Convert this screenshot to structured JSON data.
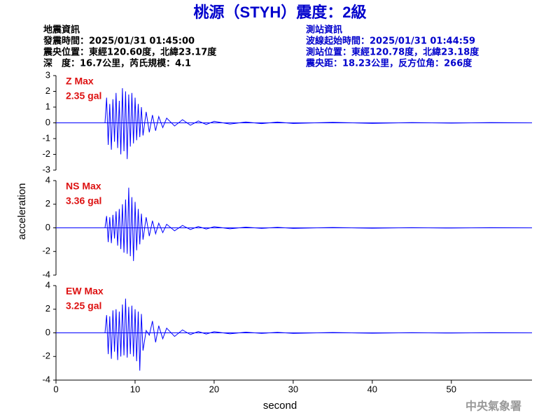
{
  "header": {
    "title": "桃源（STYH）震度：2級",
    "left": [
      "地震資訊",
      "發震時間：2025/01/31 01:45:00",
      "震央位置：東經120.60度，北緯23.17度",
      "深　度：16.7公里，芮氏規模：4.1"
    ],
    "right": [
      "測站資訊",
      "波線起始時間：2025/01/31 01:44:59",
      "測站位置：東經120.78度，北緯23.18度",
      "震央距：18.23公里，反方位角：266度"
    ]
  },
  "footer": {
    "credit": "中央氣象署"
  },
  "chart_data": [
    {
      "type": "line",
      "annotation": [
        "Z Max",
        "2.35 gal"
      ],
      "color": "#0000ff",
      "x": [
        6.2,
        6.4,
        6.6,
        6.8,
        7.0,
        7.2,
        7.4,
        7.6,
        7.8,
        8.0,
        8.2,
        8.4,
        8.6,
        8.8,
        9.0,
        9.2,
        9.4,
        9.6,
        9.8,
        10.0,
        10.2,
        10.4,
        10.6,
        10.8,
        11.0,
        11.4,
        11.8,
        12.2,
        12.6,
        13.0,
        13.5,
        14,
        15,
        16,
        17,
        18,
        19,
        20,
        22,
        24,
        26,
        28,
        30,
        35,
        40,
        45,
        50,
        55,
        60
      ],
      "values": [
        0,
        1.6,
        -1.4,
        1.2,
        -1.7,
        1.5,
        -1.2,
        1.9,
        -1.6,
        1.4,
        -2.0,
        2.2,
        -1.8,
        2.0,
        -2.3,
        1.8,
        -1.5,
        1.9,
        -1.3,
        1.6,
        -1.1,
        1.2,
        -0.9,
        1.0,
        -0.8,
        0.7,
        -0.6,
        0.5,
        -0.5,
        0.4,
        -0.3,
        0.3,
        -0.2,
        0.2,
        -0.15,
        0.12,
        -0.1,
        0.1,
        -0.08,
        0.06,
        -0.05,
        0.05,
        -0.04,
        0.03,
        -0.03,
        0.02,
        -0.02,
        0.02,
        0
      ],
      "xlim": [
        0,
        60.2
      ],
      "ylim": [
        -3,
        3
      ],
      "yticks": [
        3,
        2,
        1,
        0,
        -1,
        -2,
        -3
      ]
    },
    {
      "type": "line",
      "annotation": [
        "NS Max",
        "3.36 gal"
      ],
      "color": "#0000ff",
      "ylabel": "acceleration",
      "x": [
        6.2,
        6.4,
        6.6,
        6.8,
        7.0,
        7.2,
        7.4,
        7.6,
        7.8,
        8.0,
        8.2,
        8.4,
        8.6,
        8.8,
        9.0,
        9.2,
        9.4,
        9.6,
        9.8,
        10.0,
        10.2,
        10.4,
        10.6,
        10.8,
        11.0,
        11.4,
        11.8,
        12.2,
        12.6,
        13.0,
        13.5,
        14,
        15,
        16,
        17,
        18,
        19,
        20,
        22,
        24,
        26,
        28,
        30,
        35,
        40,
        45,
        50,
        55,
        60
      ],
      "values": [
        0,
        1.0,
        -1.2,
        0.9,
        -1.3,
        1.1,
        -0.9,
        1.4,
        -1.5,
        1.6,
        -1.8,
        2.0,
        -2.1,
        2.4,
        -2.2,
        3.4,
        -2.4,
        2.6,
        -2.8,
        2.2,
        -1.9,
        1.6,
        -1.4,
        1.2,
        -1.0,
        0.9,
        -0.7,
        0.6,
        -0.5,
        0.4,
        -0.4,
        0.3,
        -0.25,
        0.2,
        -0.15,
        0.12,
        -0.1,
        0.1,
        -0.08,
        0.06,
        -0.05,
        0.05,
        -0.04,
        0.03,
        -0.03,
        0.02,
        -0.02,
        0.02,
        0
      ],
      "xlim": [
        0,
        60.2
      ],
      "ylim": [
        -4,
        4
      ],
      "yticks": [
        4,
        2,
        0,
        -2,
        -4
      ]
    },
    {
      "type": "line",
      "annotation": [
        "EW Max",
        "3.25 gal"
      ],
      "color": "#0000ff",
      "xlabel": "second",
      "x": [
        6.2,
        6.4,
        6.6,
        6.8,
        7.0,
        7.2,
        7.4,
        7.6,
        7.8,
        8.0,
        8.2,
        8.4,
        8.6,
        8.8,
        9.0,
        9.2,
        9.4,
        9.6,
        9.8,
        10.0,
        10.2,
        10.4,
        10.6,
        10.8,
        11.0,
        11.4,
        11.8,
        12.2,
        12.6,
        13.0,
        13.5,
        14,
        15,
        16,
        17,
        18,
        19,
        20,
        22,
        24,
        26,
        28,
        30,
        35,
        40,
        45,
        50,
        55,
        60
      ],
      "values": [
        0,
        1.5,
        -1.8,
        1.4,
        -2.2,
        1.9,
        -1.6,
        2.0,
        -2.3,
        1.8,
        -2.0,
        2.4,
        -1.9,
        2.9,
        -2.1,
        2.2,
        -1.8,
        2.3,
        -2.0,
        2.0,
        -2.4,
        1.8,
        -3.2,
        1.6,
        -1.5,
        0.2,
        -0.2,
        1.0,
        -0.8,
        0.6,
        -0.5,
        0.4,
        -0.3,
        0.25,
        -0.15,
        0.12,
        -0.1,
        0.1,
        -0.08,
        0.06,
        -0.05,
        0.05,
        -0.04,
        0.03,
        -0.03,
        0.02,
        -0.02,
        0.02,
        0
      ],
      "xlim": [
        0,
        60.2
      ],
      "ylim": [
        -4,
        4
      ],
      "yticks": [
        4,
        2,
        0,
        -2,
        -4
      ],
      "xticks": [
        0,
        10,
        20,
        30,
        40,
        50
      ]
    }
  ]
}
